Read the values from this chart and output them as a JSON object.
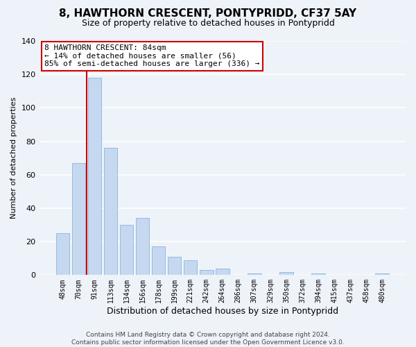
{
  "title": "8, HAWTHORN CRESCENT, PONTYPRIDD, CF37 5AY",
  "subtitle": "Size of property relative to detached houses in Pontypridd",
  "xlabel": "Distribution of detached houses by size in Pontypridd",
  "ylabel": "Number of detached properties",
  "bar_labels": [
    "48sqm",
    "70sqm",
    "91sqm",
    "113sqm",
    "134sqm",
    "156sqm",
    "178sqm",
    "199sqm",
    "221sqm",
    "242sqm",
    "264sqm",
    "286sqm",
    "307sqm",
    "329sqm",
    "350sqm",
    "372sqm",
    "394sqm",
    "415sqm",
    "437sqm",
    "458sqm",
    "480sqm"
  ],
  "bar_values": [
    25,
    67,
    118,
    76,
    30,
    34,
    17,
    11,
    9,
    3,
    4,
    0,
    1,
    0,
    2,
    0,
    1,
    0,
    0,
    0,
    1
  ],
  "bar_color": "#c5d8f0",
  "bar_edge_color": "#7aacd6",
  "marker_label": "8 HAWTHORN CRESCENT: 84sqm",
  "annotation_line1": "← 14% of detached houses are smaller (56)",
  "annotation_line2": "85% of semi-detached houses are larger (336) →",
  "annotation_box_color": "#ffffff",
  "annotation_box_edge_color": "#cc0000",
  "marker_line_color": "#cc0000",
  "ylim": [
    0,
    140
  ],
  "yticks": [
    0,
    20,
    40,
    60,
    80,
    100,
    120,
    140
  ],
  "footer_line1": "Contains HM Land Registry data © Crown copyright and database right 2024.",
  "footer_line2": "Contains public sector information licensed under the Open Government Licence v3.0.",
  "background_color": "#eef2f9",
  "grid_color": "#ffffff",
  "title_fontsize": 11,
  "subtitle_fontsize": 9,
  "ylabel_fontsize": 8,
  "xlabel_fontsize": 9,
  "tick_fontsize": 7,
  "footer_fontsize": 6.5
}
